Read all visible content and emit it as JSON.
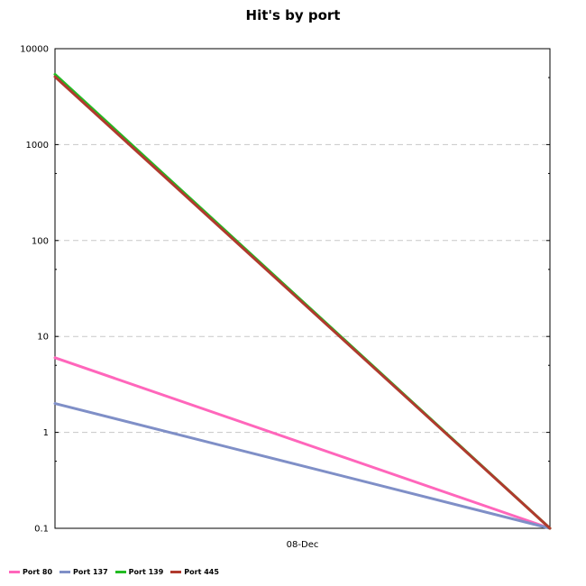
{
  "chart_data": {
    "type": "line",
    "title": "Hit's by port",
    "xlabel": "",
    "ylabel": "",
    "y_scale": "log",
    "ylim": [
      0.1,
      10000
    ],
    "y_ticks": [
      "10000",
      "1000",
      "100",
      "10",
      "1",
      "0.1"
    ],
    "x_tick_labels": [
      "08-Dec"
    ],
    "grid": "horizontal dashed",
    "legend_position": "bottom-left",
    "series": [
      {
        "name": "Port 80",
        "color": "#ff66bb",
        "values": [
          6,
          0.1
        ]
      },
      {
        "name": "Port 137",
        "color": "#7f8fc7",
        "values": [
          2,
          0.1
        ]
      },
      {
        "name": "Port 139",
        "color": "#22bb22",
        "values": [
          5400,
          0.1
        ]
      },
      {
        "name": "Port 445",
        "color": "#b03a2e",
        "values": [
          5100,
          0.1
        ]
      }
    ]
  }
}
